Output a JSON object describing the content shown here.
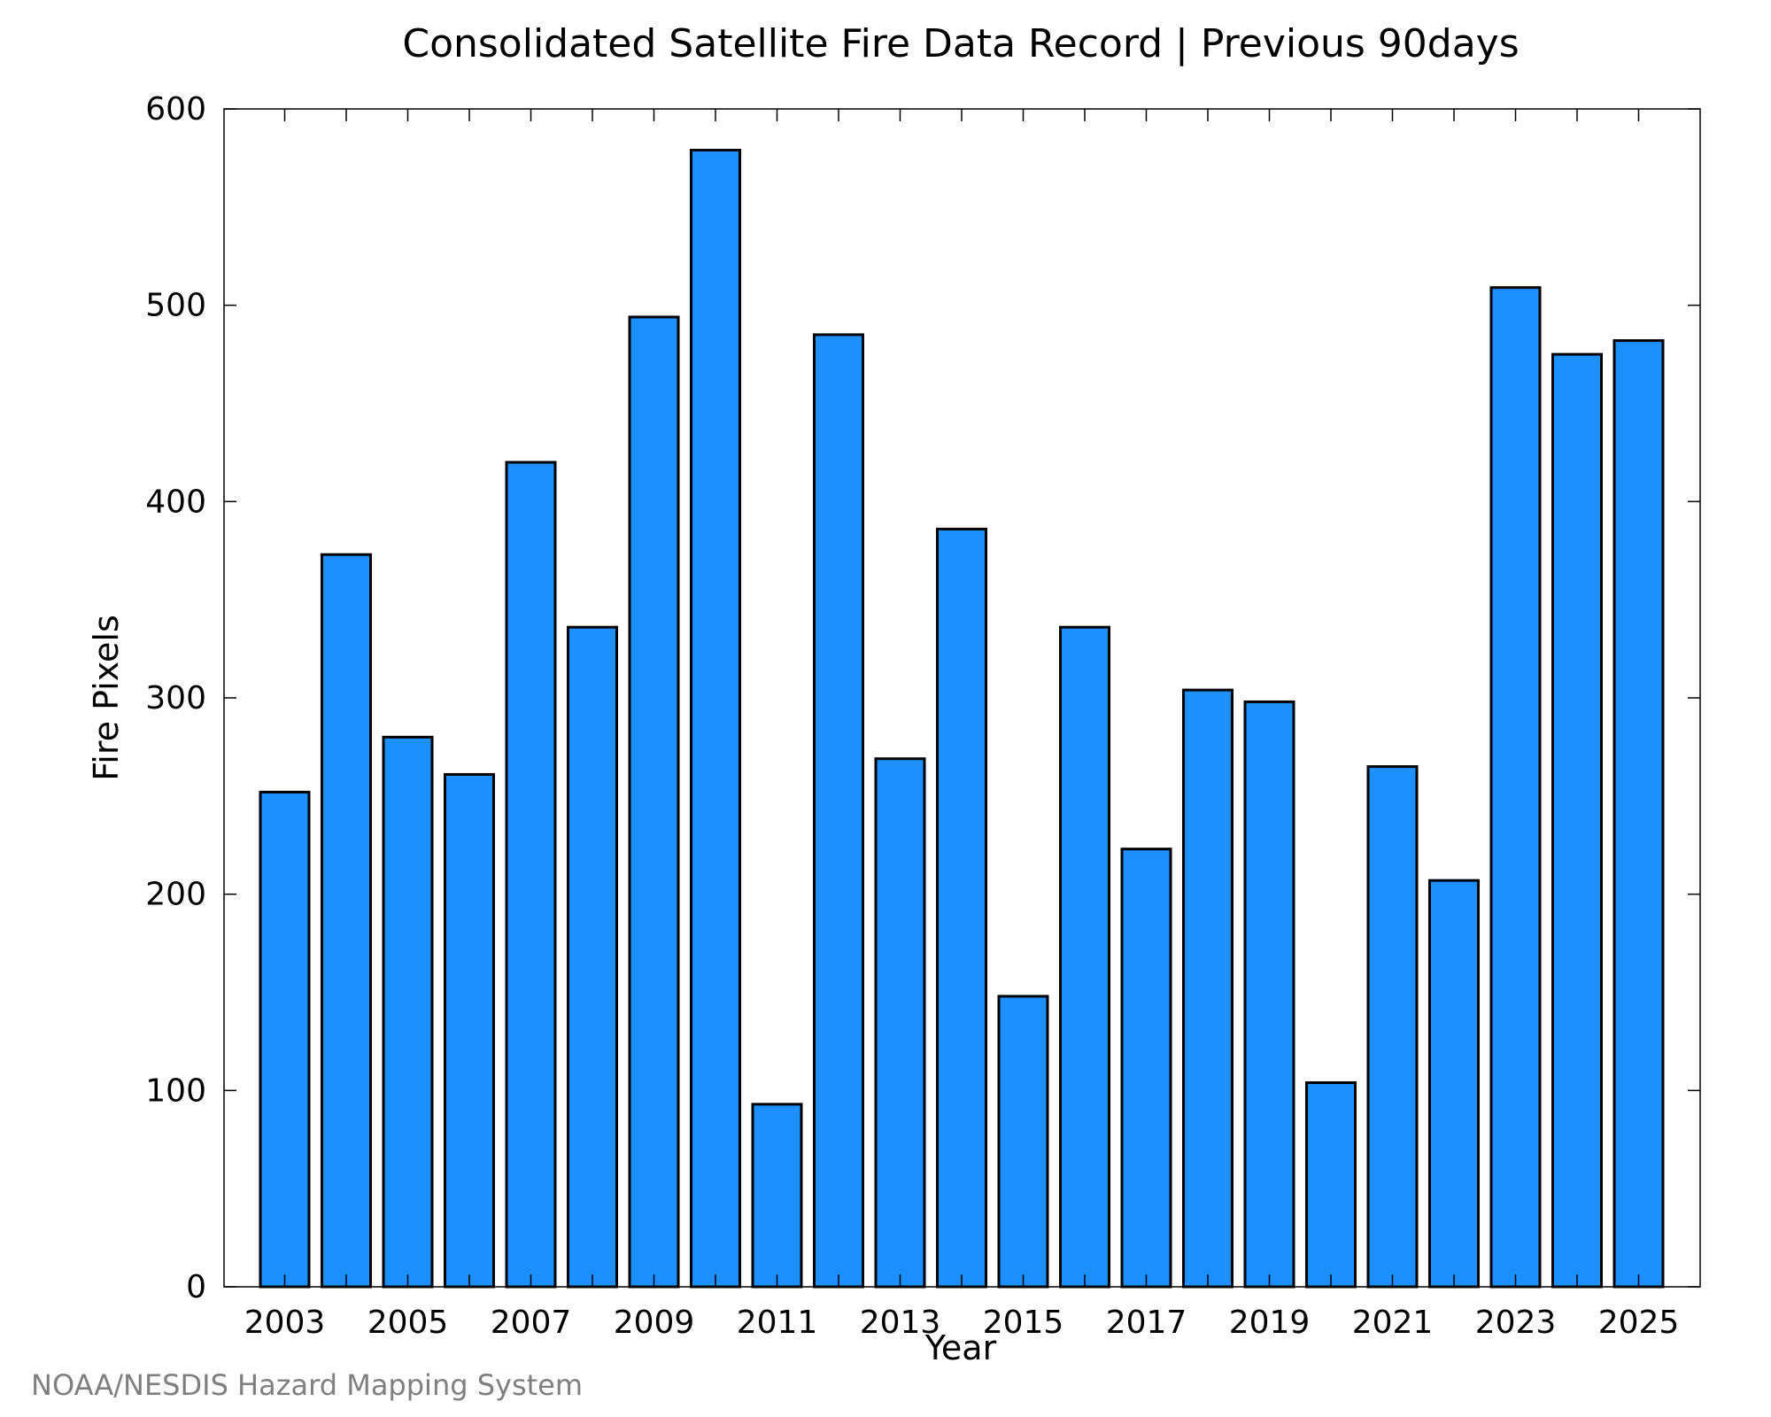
{
  "chart_data": {
    "type": "bar",
    "title": "Consolidated Satellite Fire Data Record | Previous 90days",
    "xlabel": "Year",
    "ylabel": "Fire Pixels",
    "categories": [
      "2003",
      "2004",
      "2005",
      "2006",
      "2007",
      "2008",
      "2009",
      "2010",
      "2011",
      "2012",
      "2013",
      "2014",
      "2015",
      "2016",
      "2017",
      "2018",
      "2019",
      "2020",
      "2021",
      "2022",
      "2023",
      "2024",
      "2025"
    ],
    "values": [
      252,
      373,
      280,
      261,
      420,
      336,
      494,
      579,
      93,
      485,
      269,
      386,
      148,
      336,
      223,
      304,
      298,
      104,
      265,
      207,
      509,
      475,
      482
    ],
    "x_tick_labels": [
      "2003",
      "2005",
      "2007",
      "2009",
      "2011",
      "2013",
      "2015",
      "2017",
      "2019",
      "2021",
      "2023",
      "2025"
    ],
    "y_ticks": [
      0,
      100,
      200,
      300,
      400,
      500,
      600
    ],
    "ylim": [
      0,
      600
    ],
    "grid": false,
    "bar_color": "#1e8fff",
    "edge_color": "#000000"
  },
  "credit": "NOAA/NESDIS Hazard Mapping System"
}
